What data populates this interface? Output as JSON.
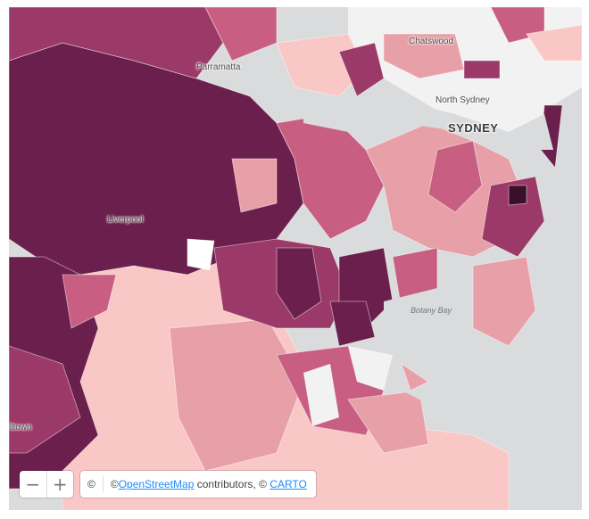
{
  "map": {
    "labels": {
      "chatswood": "Chatswood",
      "parramatta": "Parramatta",
      "north_sydney": "North Sydney",
      "sydney": "SYDNEY",
      "liverpool": "Liverpool",
      "botany_bay": "Botany Bay",
      "town": "lltown"
    },
    "colors": {
      "water": "#d9dbdc",
      "land_none": "#f2f2f2",
      "level1": "#f9c7c5",
      "level2": "#e8a0a8",
      "level3": "#c85f82",
      "level4": "#9b3a68",
      "level5": "#6b1f4c"
    }
  },
  "controls": {
    "zoom_out_icon": "minus-icon",
    "zoom_in_icon": "plus-icon",
    "zoom_out": "−",
    "zoom_in": "+"
  },
  "attribution": {
    "info_symbol": "©",
    "prefix": "© ",
    "osm_link": "OpenStreetMap",
    "middle": " contributors, © ",
    "carto_link": "CARTO"
  }
}
